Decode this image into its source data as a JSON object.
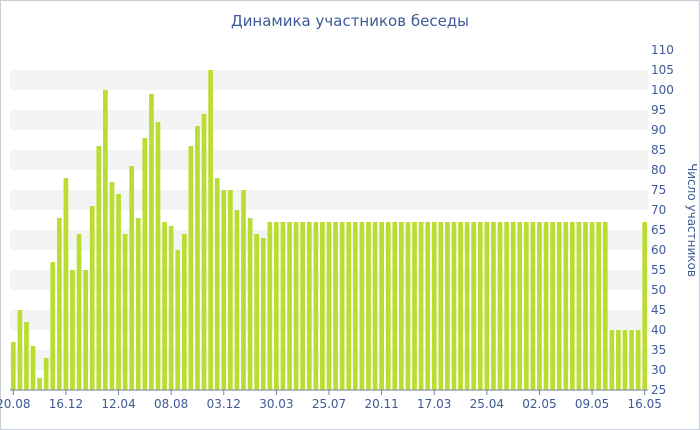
{
  "chart_data": {
    "type": "bar",
    "title": "Динамика участников беседы",
    "ylabel": "Число участников",
    "xlabel": "",
    "ylim": [
      25,
      110
    ],
    "y_ticks": [
      25,
      30,
      35,
      40,
      45,
      50,
      55,
      60,
      65,
      70,
      75,
      80,
      85,
      90,
      95,
      100,
      105,
      110
    ],
    "x_tick_labels": [
      "20.08",
      "16.12",
      "12.04",
      "08.08",
      "03.12",
      "30.03",
      "25.07",
      "20.11",
      "17.03",
      "25.04",
      "02.05",
      "09.05",
      "16.05"
    ],
    "x_tick_indices": [
      0,
      8,
      16,
      24,
      32,
      40,
      48,
      56,
      64,
      72,
      80,
      88,
      96
    ],
    "bar_color": "#bbdd33",
    "grid": "horizontal bands",
    "values": [
      37,
      45,
      42,
      36,
      28,
      33,
      57,
      68,
      78,
      55,
      64,
      55,
      71,
      86,
      100,
      77,
      74,
      64,
      81,
      68,
      88,
      99,
      92,
      67,
      66,
      60,
      64,
      86,
      91,
      94,
      105,
      78,
      75,
      75,
      70,
      75,
      68,
      64,
      63,
      67,
      67,
      67,
      67,
      67,
      67,
      67,
      67,
      67,
      67,
      67,
      67,
      67,
      67,
      67,
      67,
      67,
      67,
      67,
      67,
      67,
      67,
      67,
      67,
      67,
      67,
      67,
      67,
      67,
      67,
      67,
      67,
      67,
      67,
      67,
      67,
      67,
      67,
      67,
      67,
      67,
      67,
      67,
      67,
      67,
      67,
      67,
      67,
      67,
      67,
      67,
      67,
      40,
      40,
      40,
      40,
      40,
      67
    ]
  }
}
